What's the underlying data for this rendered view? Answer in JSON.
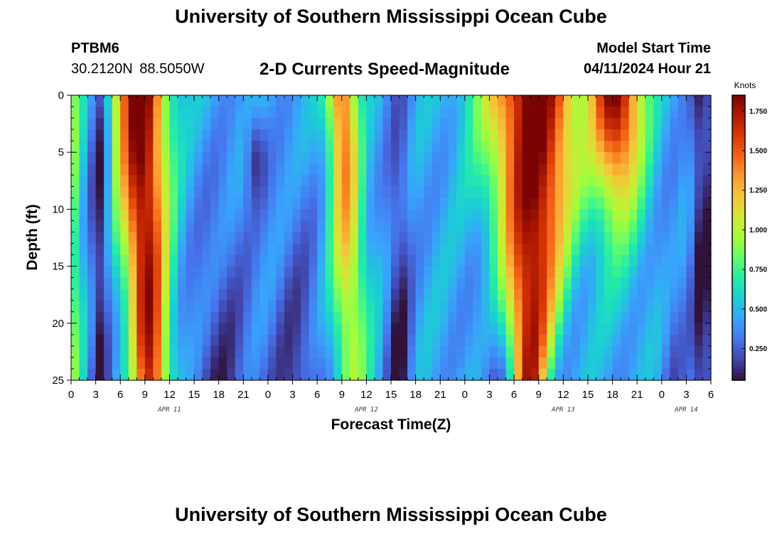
{
  "header": {
    "title": "University of Southern Mississippi Ocean Cube",
    "station": "PTBM6",
    "coordinates": "30.2120N  88.5050W",
    "subtitle": "2-D Currents Speed-Magnitude",
    "model_start_label": "Model Start Time",
    "model_start_value": "04/11/2024 Hour 21"
  },
  "footer": {
    "title": "University of Southern Mississippi Ocean Cube"
  },
  "chart_data": {
    "type": "heatmap",
    "xlabel": "Forecast Time(Z)",
    "ylabel": "Depth (ft)",
    "colorbar_label": "Knots",
    "x_range_hours": [
      0,
      78
    ],
    "y_range_ft": [
      0,
      25
    ],
    "y_ticks": [
      "0",
      "5",
      "10",
      "15",
      "20",
      "25"
    ],
    "x_ticks": [
      "0",
      "3",
      "6",
      "9",
      "12",
      "15",
      "18",
      "21",
      "0",
      "3",
      "6",
      "9",
      "12",
      "15",
      "18",
      "21",
      "0",
      "3",
      "6",
      "9",
      "12",
      "15",
      "18",
      "21",
      "0",
      "3",
      "6"
    ],
    "date_labels": [
      {
        "hour": 12,
        "text": "APR 11"
      },
      {
        "hour": 36,
        "text": "APR 12"
      },
      {
        "hour": 60,
        "text": "APR 13"
      },
      {
        "hour": 75,
        "text": "APR 14"
      }
    ],
    "colorbar_ticks": [
      {
        "value": 0.25,
        "label": "0.250"
      },
      {
        "value": 0.5,
        "label": "0.500"
      },
      {
        "value": 0.75,
        "label": "0.750"
      },
      {
        "value": 1.0,
        "label": "1.000"
      },
      {
        "value": 1.25,
        "label": "1.250"
      },
      {
        "value": 1.5,
        "label": "1.500"
      },
      {
        "value": 1.75,
        "label": "1.750"
      }
    ],
    "colorbar_range": [
      0.05,
      1.85
    ],
    "colormap": [
      "#30123b",
      "#4145ab",
      "#4675ed",
      "#39a2fc",
      "#1bcfd4",
      "#24eca6",
      "#61fc6c",
      "#a4fc3b",
      "#d1e834",
      "#f3c63a",
      "#fe9b2d",
      "#f36315",
      "#d93806",
      "#b11901",
      "#7a0402"
    ],
    "grid_step_hours": 1,
    "grid_step_ft": 1
  }
}
